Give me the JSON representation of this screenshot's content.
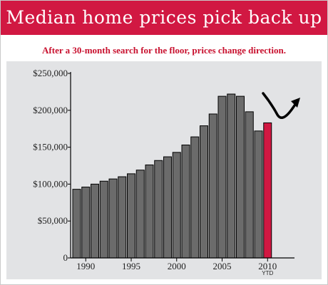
{
  "header": {
    "title": "Median home prices pick back up",
    "subtitle": "After a 30-month search for the floor, prices change direction."
  },
  "colors": {
    "title_bar": "#d11842",
    "subtitle_text": "#c8102e",
    "plot_background": "#e2e3e5",
    "bar_fill": "#6b6b6b",
    "highlight_bar_fill": "#d11842",
    "arrow": "#000000"
  },
  "chart_data": {
    "type": "bar",
    "categories": [
      "1989",
      "1990",
      "1991",
      "1992",
      "1993",
      "1994",
      "1995",
      "1996",
      "1997",
      "1998",
      "1999",
      "2000",
      "2001",
      "2002",
      "2003",
      "2004",
      "2005",
      "2006",
      "2007",
      "2008",
      "2009",
      "2010"
    ],
    "values": [
      93000,
      96000,
      100000,
      104000,
      107000,
      110000,
      114000,
      119000,
      126000,
      132000,
      137000,
      143000,
      153000,
      164000,
      179000,
      195000,
      219000,
      222000,
      219000,
      198000,
      172000,
      183000
    ],
    "highlight_category": "2010",
    "x_tick_labels": [
      {
        "category": "1990",
        "label": "1990",
        "sublabel": ""
      },
      {
        "category": "1995",
        "label": "1995",
        "sublabel": ""
      },
      {
        "category": "2000",
        "label": "2000",
        "sublabel": ""
      },
      {
        "category": "2005",
        "label": "2005",
        "sublabel": ""
      },
      {
        "category": "2010",
        "label": "2010",
        "sublabel": "YTD"
      }
    ],
    "y_ticks": [
      0,
      50000,
      100000,
      150000,
      200000,
      250000
    ],
    "y_tick_labels": [
      "0",
      "$50,000",
      "$100,000",
      "$150,000",
      "$200,000",
      "$250,000"
    ],
    "ylim": [
      0,
      250000
    ],
    "title": "",
    "xlabel": "",
    "ylabel": "",
    "grid": false,
    "legend": "none",
    "annotation": "curved-arrow-turning-up"
  }
}
